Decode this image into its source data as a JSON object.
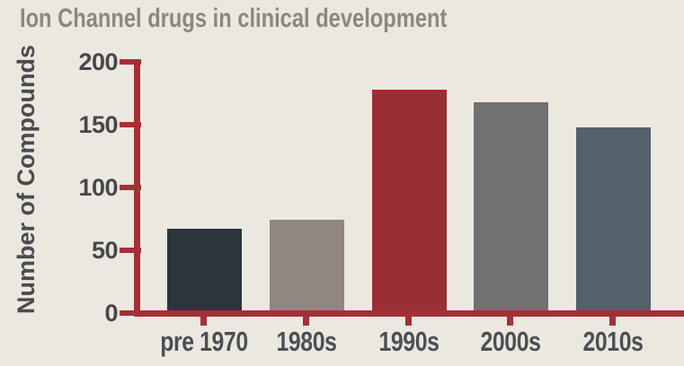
{
  "title": "Ion Channel drugs in clinical development",
  "colors": {
    "background": "#ebe8e0",
    "title_text": "#8e8780",
    "axis": "#a52f36",
    "tick_label_text": "#47474b",
    "category_label_text": "#4e4f54",
    "y_axis_label_text": "#4b4b4e"
  },
  "chart_data": {
    "type": "bar",
    "title": "Ion Channel drugs in clinical development",
    "categories": [
      "pre 1970",
      "1980s",
      "1990s",
      "2000s",
      "2010s"
    ],
    "values": [
      65,
      72,
      176,
      166,
      146
    ],
    "bar_colors": [
      "#2b353b",
      "#8f8780",
      "#9a2e35",
      "#717170",
      "#53616b"
    ],
    "xlabel": "",
    "ylabel": "Number of Compounds",
    "ylim": [
      0,
      200
    ],
    "yticks": [
      0,
      50,
      100,
      150,
      200
    ],
    "grid": false,
    "legend": "none",
    "axis_color": "#a52f36"
  }
}
